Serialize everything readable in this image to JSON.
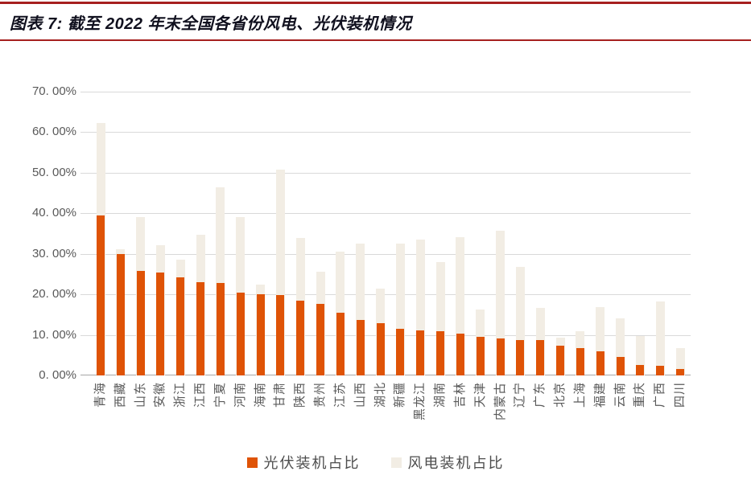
{
  "header": {
    "title": "图表 7: 截至 2022 年末全国各省份风电、光伏装机情况",
    "rule_color": "#a6201f"
  },
  "chart_data": {
    "type": "bar",
    "bar_mode": "overlap",
    "title": "截至 2022 年末全国各省份风电、光伏装机情况",
    "categories": [
      "青海",
      "西藏",
      "山东",
      "安徽",
      "浙江",
      "江西",
      "宁夏",
      "河南",
      "海南",
      "甘肃",
      "陕西",
      "贵州",
      "江苏",
      "山西",
      "湖北",
      "新疆",
      "黑龙江",
      "湖南",
      "吉林",
      "天津",
      "内蒙古",
      "辽宁",
      "广东",
      "北京",
      "上海",
      "福建",
      "云南",
      "重庆",
      "广西",
      "四川"
    ],
    "series": [
      {
        "name": "光伏装机占比",
        "color": "#df5306",
        "values": [
          39.5,
          30.0,
          25.8,
          25.4,
          24.2,
          23.1,
          22.9,
          20.5,
          20.0,
          19.9,
          18.4,
          17.7,
          15.4,
          13.6,
          12.8,
          11.5,
          11.1,
          11.0,
          10.4,
          9.6,
          9.2,
          8.8,
          8.7,
          7.3,
          6.8,
          5.9,
          4.6,
          2.6,
          2.4,
          1.5
        ]
      },
      {
        "name": "风电装机占比",
        "color": "#f2ede4",
        "values": [
          62.3,
          31.1,
          39.0,
          32.1,
          28.6,
          34.8,
          46.4,
          39.0,
          22.5,
          50.7,
          34.0,
          25.5,
          30.6,
          32.5,
          21.5,
          32.6,
          33.5,
          27.9,
          34.2,
          16.2,
          35.7,
          26.8,
          16.6,
          9.4,
          10.9,
          16.9,
          14.1,
          9.8,
          18.2,
          6.8
        ]
      }
    ],
    "xlabel": "",
    "ylabel": "",
    "ylim": [
      0,
      70
    ],
    "ytick_step": 10,
    "ytick_labels": [
      "0. 00%",
      "10. 00%",
      "20. 00%",
      "30. 00%",
      "40. 00%",
      "50. 00%",
      "60. 00%",
      "70. 00%"
    ],
    "grid": true,
    "legend_position": "bottom"
  }
}
